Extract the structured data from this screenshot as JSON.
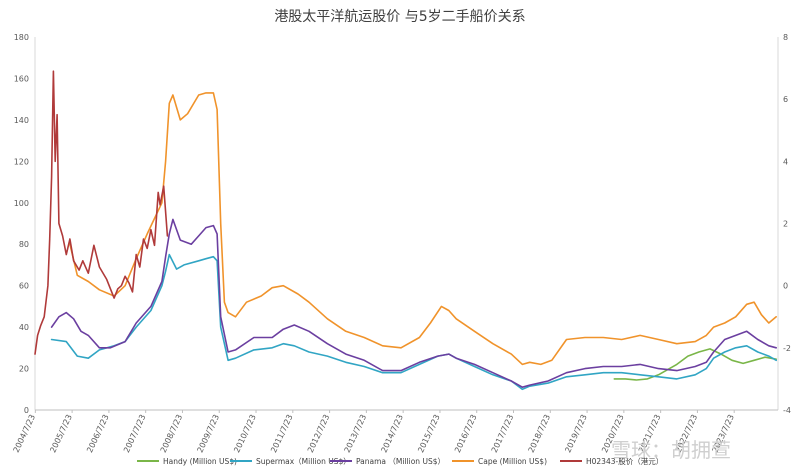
{
  "chart_data": {
    "type": "line",
    "title": "港股太平洋航运股价 与5岁二手船价关系",
    "x_dates": [
      "2004/7/23",
      "2005/7/23",
      "2006/7/23",
      "2007/7/23",
      "2008/7/23",
      "2009/7/23",
      "2010/7/23",
      "2011/7/23",
      "2012/7/23",
      "2013/7/23",
      "2014/7/23",
      "2015/7/23",
      "2016/7/23",
      "2017/7/23",
      "2018/7/23",
      "2019/7/23",
      "2020/7/23",
      "2021/7/23",
      "2022/7/23",
      "2023/7/23"
    ],
    "left_axis": {
      "ticks": [
        0,
        20,
        40,
        60,
        80,
        100,
        120,
        140,
        160,
        180
      ],
      "ylim": [
        0,
        180
      ]
    },
    "right_axis": {
      "ticks": [
        -4,
        -2,
        0,
        2,
        4,
        6,
        8
      ],
      "ylim": [
        -4,
        8
      ]
    },
    "grid": false,
    "legend_position": "bottom",
    "series": [
      {
        "name": "Handy (Million US$)",
        "color": "#7ab648",
        "axis": "left",
        "points": [
          [
            2020.3,
            15
          ],
          [
            2020.6,
            15
          ],
          [
            2020.9,
            14.5
          ],
          [
            2021.2,
            15
          ],
          [
            2021.5,
            17
          ],
          [
            2021.8,
            20
          ],
          [
            2022.0,
            22
          ],
          [
            2022.3,
            26
          ],
          [
            2022.6,
            28
          ],
          [
            2022.9,
            29.5
          ],
          [
            2023.2,
            27
          ],
          [
            2023.5,
            24
          ],
          [
            2023.8,
            22.5
          ],
          [
            2024.1,
            24
          ],
          [
            2024.4,
            25.5
          ],
          [
            2024.7,
            24.5
          ]
        ]
      },
      {
        "name": "Supermax（Million US$）",
        "color": "#31a5c4",
        "axis": "left",
        "points": [
          [
            2005.0,
            34
          ],
          [
            2005.4,
            33
          ],
          [
            2005.7,
            26
          ],
          [
            2006.0,
            25
          ],
          [
            2006.3,
            29
          ],
          [
            2006.7,
            31
          ],
          [
            2007.0,
            33
          ],
          [
            2007.3,
            40
          ],
          [
            2007.7,
            48
          ],
          [
            2008.0,
            60
          ],
          [
            2008.1,
            67
          ],
          [
            2008.2,
            75
          ],
          [
            2008.4,
            68
          ],
          [
            2008.6,
            70
          ],
          [
            2009.0,
            72
          ],
          [
            2009.2,
            73
          ],
          [
            2009.4,
            74
          ],
          [
            2009.5,
            72
          ],
          [
            2009.6,
            40
          ],
          [
            2009.8,
            24
          ],
          [
            2010.0,
            25
          ],
          [
            2010.5,
            29
          ],
          [
            2011.0,
            30
          ],
          [
            2011.3,
            32
          ],
          [
            2011.6,
            31
          ],
          [
            2012.0,
            28
          ],
          [
            2012.5,
            26
          ],
          [
            2013.0,
            23
          ],
          [
            2013.5,
            21
          ],
          [
            2014.0,
            18
          ],
          [
            2014.5,
            18
          ],
          [
            2015.0,
            22
          ],
          [
            2015.5,
            26
          ],
          [
            2015.8,
            27
          ],
          [
            2016.0,
            25
          ],
          [
            2016.5,
            21
          ],
          [
            2017.0,
            17
          ],
          [
            2017.5,
            14
          ],
          [
            2017.8,
            10
          ],
          [
            2018.0,
            11.5
          ],
          [
            2018.5,
            13
          ],
          [
            2019.0,
            16
          ],
          [
            2019.5,
            17
          ],
          [
            2020.0,
            18
          ],
          [
            2020.5,
            18
          ],
          [
            2021.0,
            17
          ],
          [
            2021.5,
            16
          ],
          [
            2022.0,
            15
          ],
          [
            2022.5,
            17
          ],
          [
            2022.8,
            20
          ],
          [
            2023.0,
            25
          ],
          [
            2023.3,
            28
          ],
          [
            2023.6,
            30
          ],
          [
            2023.9,
            31
          ],
          [
            2024.2,
            28
          ],
          [
            2024.5,
            26
          ],
          [
            2024.7,
            24
          ]
        ]
      },
      {
        "name": "Panama （Million US$）",
        "color": "#6b3fa0",
        "axis": "left",
        "points": [
          [
            2005.0,
            40
          ],
          [
            2005.2,
            45
          ],
          [
            2005.4,
            47
          ],
          [
            2005.6,
            44
          ],
          [
            2005.8,
            38
          ],
          [
            2006.0,
            36
          ],
          [
            2006.3,
            30
          ],
          [
            2006.6,
            30
          ],
          [
            2007.0,
            33
          ],
          [
            2007.3,
            42
          ],
          [
            2007.7,
            50
          ],
          [
            2008.0,
            62
          ],
          [
            2008.1,
            74
          ],
          [
            2008.2,
            85
          ],
          [
            2008.3,
            92
          ],
          [
            2008.5,
            82
          ],
          [
            2008.8,
            80
          ],
          [
            2009.0,
            84
          ],
          [
            2009.2,
            88
          ],
          [
            2009.4,
            89
          ],
          [
            2009.5,
            85
          ],
          [
            2009.6,
            45
          ],
          [
            2009.8,
            28
          ],
          [
            2010.0,
            29
          ],
          [
            2010.5,
            35
          ],
          [
            2011.0,
            35
          ],
          [
            2011.3,
            39
          ],
          [
            2011.6,
            41
          ],
          [
            2012.0,
            38
          ],
          [
            2012.5,
            32
          ],
          [
            2013.0,
            27
          ],
          [
            2013.5,
            24
          ],
          [
            2014.0,
            19
          ],
          [
            2014.5,
            19
          ],
          [
            2015.0,
            23
          ],
          [
            2015.5,
            26
          ],
          [
            2015.8,
            27
          ],
          [
            2016.0,
            25
          ],
          [
            2016.5,
            22
          ],
          [
            2017.0,
            18
          ],
          [
            2017.5,
            14
          ],
          [
            2017.8,
            11
          ],
          [
            2018.0,
            12
          ],
          [
            2018.5,
            14
          ],
          [
            2019.0,
            18
          ],
          [
            2019.5,
            20
          ],
          [
            2020.0,
            21
          ],
          [
            2020.5,
            21
          ],
          [
            2021.0,
            22
          ],
          [
            2021.5,
            20
          ],
          [
            2022.0,
            19
          ],
          [
            2022.5,
            21
          ],
          [
            2022.8,
            23
          ],
          [
            2023.0,
            28
          ],
          [
            2023.3,
            34
          ],
          [
            2023.6,
            36
          ],
          [
            2023.9,
            38
          ],
          [
            2024.2,
            34
          ],
          [
            2024.5,
            31
          ],
          [
            2024.7,
            30
          ]
        ]
      },
      {
        "name": "Cape (Million US$)",
        "color": "#f0932b",
        "axis": "left",
        "points": [
          [
            2005.5,
            80
          ],
          [
            2005.7,
            65
          ],
          [
            2006.0,
            62
          ],
          [
            2006.3,
            58
          ],
          [
            2006.7,
            55
          ],
          [
            2007.0,
            60
          ],
          [
            2007.3,
            73
          ],
          [
            2007.6,
            85
          ],
          [
            2008.0,
            100
          ],
          [
            2008.1,
            120
          ],
          [
            2008.2,
            148
          ],
          [
            2008.3,
            152
          ],
          [
            2008.5,
            140
          ],
          [
            2008.7,
            143
          ],
          [
            2009.0,
            152
          ],
          [
            2009.2,
            153
          ],
          [
            2009.4,
            153
          ],
          [
            2009.5,
            145
          ],
          [
            2009.6,
            90
          ],
          [
            2009.7,
            52
          ],
          [
            2009.8,
            47
          ],
          [
            2010.0,
            45
          ],
          [
            2010.3,
            52
          ],
          [
            2010.7,
            55
          ],
          [
            2011.0,
            59
          ],
          [
            2011.3,
            60
          ],
          [
            2011.7,
            56
          ],
          [
            2012.0,
            52
          ],
          [
            2012.5,
            44
          ],
          [
            2013.0,
            38
          ],
          [
            2013.5,
            35
          ],
          [
            2014.0,
            31
          ],
          [
            2014.5,
            30
          ],
          [
            2015.0,
            35
          ],
          [
            2015.3,
            42
          ],
          [
            2015.6,
            50
          ],
          [
            2015.8,
            48
          ],
          [
            2016.0,
            44
          ],
          [
            2016.5,
            38
          ],
          [
            2017.0,
            32
          ],
          [
            2017.5,
            27
          ],
          [
            2017.8,
            22
          ],
          [
            2018.0,
            23
          ],
          [
            2018.3,
            22
          ],
          [
            2018.6,
            24
          ],
          [
            2019.0,
            34
          ],
          [
            2019.5,
            35
          ],
          [
            2020.0,
            35
          ],
          [
            2020.5,
            34
          ],
          [
            2021.0,
            36
          ],
          [
            2021.5,
            34
          ],
          [
            2022.0,
            32
          ],
          [
            2022.5,
            33
          ],
          [
            2022.8,
            36
          ],
          [
            2023.0,
            40
          ],
          [
            2023.3,
            42
          ],
          [
            2023.6,
            45
          ],
          [
            2023.9,
            51
          ],
          [
            2024.1,
            52
          ],
          [
            2024.3,
            46
          ],
          [
            2024.5,
            42
          ],
          [
            2024.7,
            45
          ]
        ]
      },
      {
        "name": "H02343-股价（港元）",
        "color": "#b03a3a",
        "axis": "right",
        "points": [
          [
            2004.55,
            -2.2
          ],
          [
            2004.62,
            -1.6
          ],
          [
            2004.7,
            -1.3
          ],
          [
            2004.8,
            -1.0
          ],
          [
            2004.9,
            0.0
          ],
          [
            2004.95,
            1.5
          ],
          [
            2005.0,
            3.5
          ],
          [
            2005.05,
            6.9
          ],
          [
            2005.1,
            4.0
          ],
          [
            2005.15,
            5.5
          ],
          [
            2005.2,
            2.0
          ],
          [
            2005.3,
            1.6
          ],
          [
            2005.4,
            1.0
          ],
          [
            2005.5,
            1.5
          ],
          [
            2005.6,
            0.8
          ],
          [
            2005.75,
            0.5
          ],
          [
            2005.85,
            0.8
          ],
          [
            2006.0,
            0.4
          ],
          [
            2006.15,
            1.3
          ],
          [
            2006.3,
            0.6
          ],
          [
            2006.5,
            0.2
          ],
          [
            2006.7,
            -0.4
          ],
          [
            2006.8,
            -0.1
          ],
          [
            2006.9,
            0.0
          ],
          [
            2007.0,
            0.3
          ],
          [
            2007.1,
            0.1
          ],
          [
            2007.2,
            -0.2
          ],
          [
            2007.3,
            1.0
          ],
          [
            2007.4,
            0.6
          ],
          [
            2007.5,
            1.5
          ],
          [
            2007.6,
            1.2
          ],
          [
            2007.7,
            1.8
          ],
          [
            2007.8,
            1.3
          ],
          [
            2007.9,
            3.0
          ],
          [
            2007.95,
            2.6
          ],
          [
            2008.05,
            3.2
          ],
          [
            2008.15,
            1.6
          ]
        ]
      }
    ]
  },
  "watermark": "雪球：胡拥萱"
}
